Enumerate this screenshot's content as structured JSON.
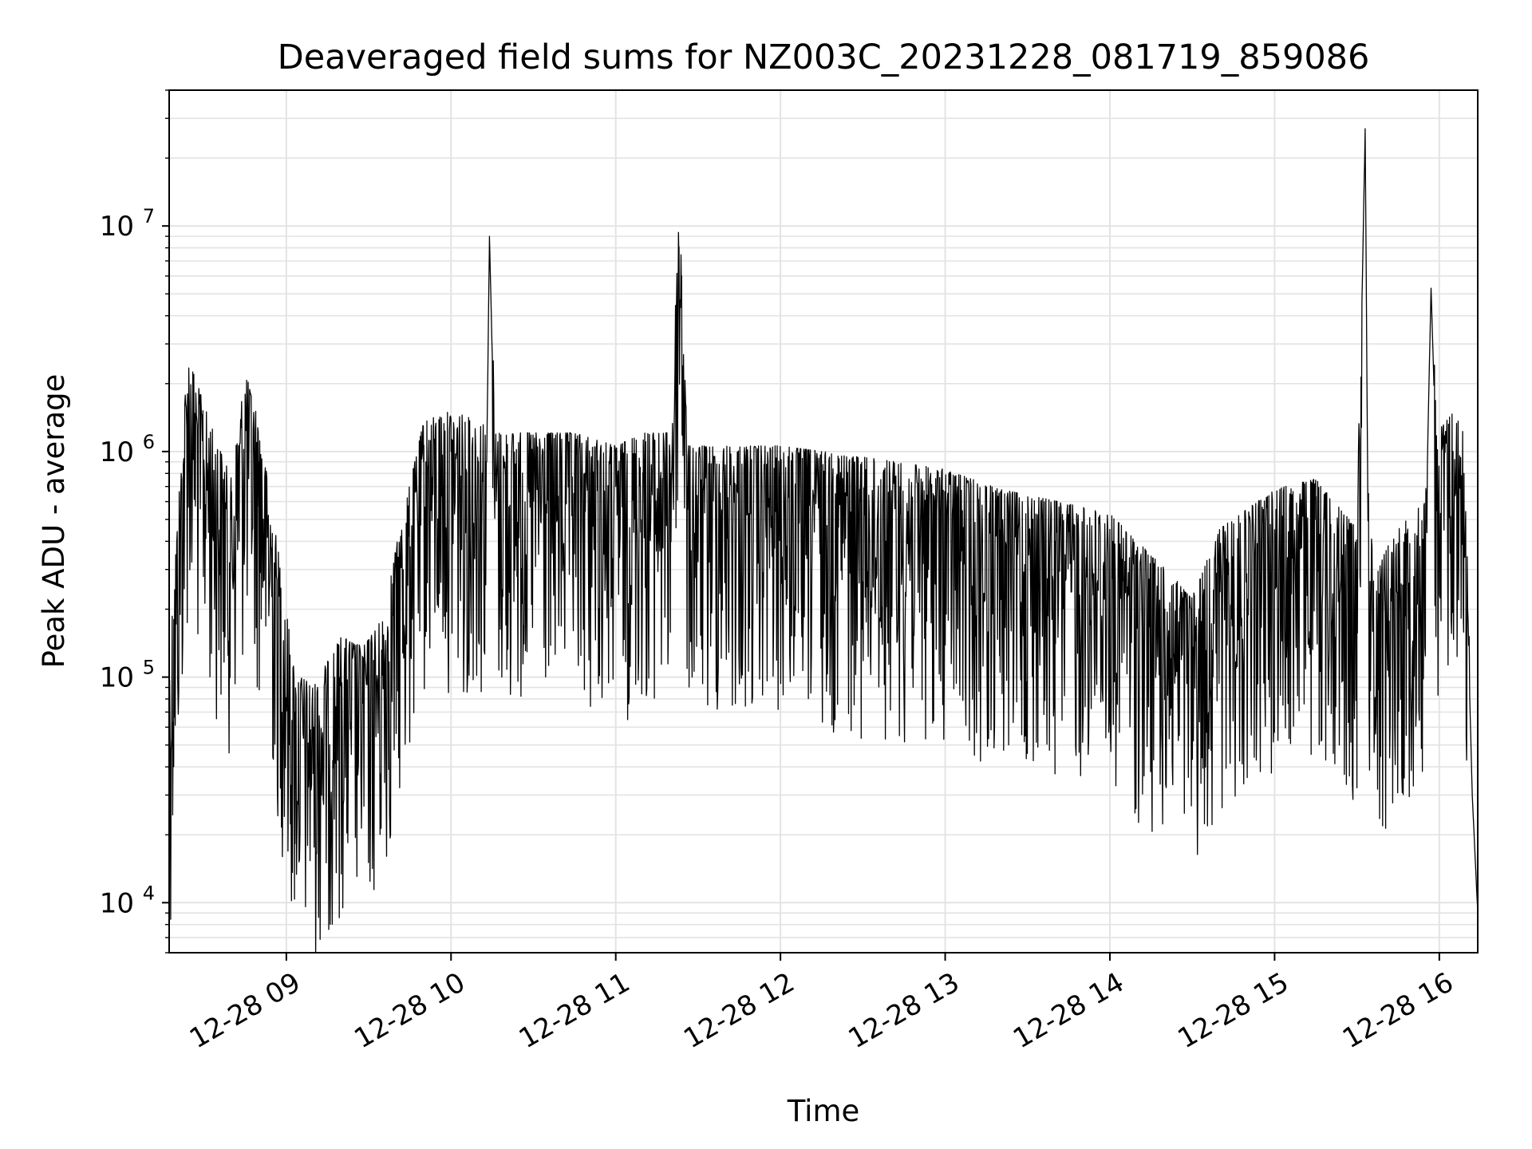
{
  "chart_data": {
    "type": "line",
    "title": "Deaveraged field sums for NZ003C_20231228_081719_859086",
    "xlabel": "Time",
    "ylabel": "Peak ADU - average",
    "yscale": "log",
    "grid": true,
    "line_color": "#000000",
    "grid_color": "#e3e3e3",
    "x_range": [
      "12-28 08:17:19",
      "12-28 16:14"
    ],
    "ylim": [
      6000,
      40000000
    ],
    "x_ticks": [
      {
        "label": "12-28 09",
        "hour": 9
      },
      {
        "label": "12-28 10",
        "hour": 10
      },
      {
        "label": "12-28 11",
        "hour": 11
      },
      {
        "label": "12-28 12",
        "hour": 12
      },
      {
        "label": "12-28 13",
        "hour": 13
      },
      {
        "label": "12-28 14",
        "hour": 14
      },
      {
        "label": "12-28 15",
        "hour": 15
      },
      {
        "label": "12-28 16",
        "hour": 16
      }
    ],
    "y_ticks": [
      {
        "base": "10",
        "exp": "4",
        "value": 10000
      },
      {
        "base": "10",
        "exp": "5",
        "value": 100000
      },
      {
        "base": "10",
        "exp": "6",
        "value": 1000000
      },
      {
        "base": "10",
        "exp": "7",
        "value": 10000000
      }
    ],
    "series": [
      {
        "x": [
          "12-28 08:17",
          "12-28 08:19",
          "12-28 08:24",
          "12-28 08:32",
          "12-28 08:40",
          "12-28 08:45",
          "12-28 08:50",
          "12-28 08:58",
          "12-28 09:03",
          "12-28 09:10",
          "12-28 09:20",
          "12-28 09:28",
          "12-28 09:35",
          "12-28 09:40",
          "12-28 09:50",
          "12-28 10:00",
          "12-28 10:10",
          "12-28 10:13",
          "12-28 10:14",
          "12-28 10:16",
          "12-28 10:30",
          "12-28 10:45",
          "12-28 11:00",
          "12-28 11:10",
          "12-28 11:20",
          "12-28 11:23",
          "12-28 11:24",
          "12-28 11:26",
          "12-28 11:40",
          "12-28 12:00",
          "12-28 12:20",
          "12-28 12:40",
          "12-28 13:00",
          "12-28 13:20",
          "12-28 13:40",
          "12-28 14:00",
          "12-28 14:20",
          "12-28 14:30",
          "12-28 14:40",
          "12-28 15:00",
          "12-28 15:15",
          "12-28 15:30",
          "12-28 15:33",
          "12-28 15:34",
          "12-28 15:36",
          "12-28 15:45",
          "12-28 15:55",
          "12-28 15:57",
          "12-28 15:59",
          "12-28 16:05",
          "12-28 16:09",
          "12-28 16:12",
          "12-28 16:14"
        ],
        "y": [
          60000,
          180000,
          1800000,
          900000,
          500000,
          1500000,
          900000,
          200000,
          70000,
          60000,
          100000,
          90000,
          120000,
          250000,
          900000,
          1000000,
          900000,
          900000,
          9000000,
          800000,
          800000,
          800000,
          700000,
          800000,
          800000,
          7500000,
          6000000,
          700000,
          700000,
          700000,
          650000,
          600000,
          550000,
          450000,
          400000,
          350000,
          200000,
          150000,
          300000,
          450000,
          500000,
          300000,
          27000000,
          500000,
          200000,
          300000,
          400000,
          5300000,
          800000,
          1000000,
          800000,
          30000,
          9000
        ]
      }
    ]
  }
}
